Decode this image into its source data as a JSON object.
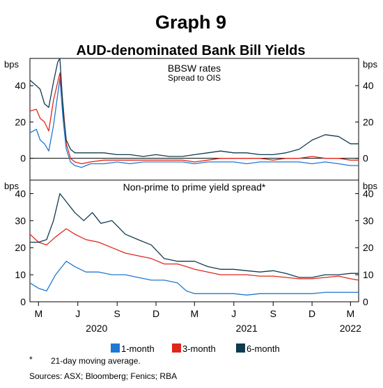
{
  "graph_label": "Graph 9",
  "title": "AUD-denominated Bank Bill Yields",
  "colors": {
    "1-month": "#1f78d1",
    "3-month": "#e0261c",
    "6-month": "#0d3b4f"
  },
  "x_tick_labels": [
    "M",
    "J",
    "S",
    "D",
    "M",
    "J",
    "S",
    "D",
    "M"
  ],
  "year_labels": [
    "2020",
    "2021",
    "2022"
  ],
  "footnote_symbol": "*",
  "footnote_text": "21-day moving average.",
  "sources": "Sources: ASX; Bloomberg; Fenics; RBA",
  "chart_data": [
    {
      "type": "line",
      "title": "BBSW rates",
      "subtitle": "Spread to OIS",
      "y_unit": "bps",
      "ylim": [
        -12,
        55
      ],
      "yticks": [
        0,
        20,
        40
      ],
      "x_range": [
        "2020-02-10",
        "2022-03-20"
      ],
      "x_ticks": [
        "2020-03-01",
        "2020-06-01",
        "2020-09-01",
        "2020-12-01",
        "2021-03-01",
        "2021-06-01",
        "2021-09-01",
        "2021-12-01",
        "2022-03-01"
      ],
      "series": [
        {
          "name": "1-month",
          "x": [
            "2020-02-10",
            "2020-02-25",
            "2020-03-05",
            "2020-03-15",
            "2020-03-25",
            "2020-04-05",
            "2020-04-20",
            "2020-04-28",
            "2020-05-05",
            "2020-05-15",
            "2020-05-25",
            "2020-06-10",
            "2020-07-01",
            "2020-08-01",
            "2020-09-01",
            "2020-10-01",
            "2020-11-01",
            "2020-12-01",
            "2021-01-01",
            "2021-02-01",
            "2021-03-01",
            "2021-04-01",
            "2021-05-01",
            "2021-06-01",
            "2021-07-01",
            "2021-08-01",
            "2021-09-01",
            "2021-10-01",
            "2021-11-01",
            "2021-12-01",
            "2022-01-01",
            "2022-02-01",
            "2022-03-01",
            "2022-03-20"
          ],
          "y": [
            14,
            16,
            10,
            8,
            4,
            18,
            44,
            20,
            5,
            -2,
            -4,
            -5,
            -3,
            -3,
            -2,
            -3,
            -2,
            -2,
            -2,
            -2,
            -3,
            -2,
            -2,
            -2,
            -3,
            -2,
            -2,
            -2,
            -2,
            -3,
            -2,
            -3,
            -4,
            -4
          ]
        },
        {
          "name": "3-month",
          "x": [
            "2020-02-10",
            "2020-02-25",
            "2020-03-05",
            "2020-03-15",
            "2020-03-25",
            "2020-04-05",
            "2020-04-20",
            "2020-04-28",
            "2020-05-05",
            "2020-05-15",
            "2020-05-25",
            "2020-06-10",
            "2020-07-01",
            "2020-08-01",
            "2020-09-01",
            "2020-10-01",
            "2020-11-01",
            "2020-12-01",
            "2021-01-01",
            "2021-02-01",
            "2021-03-01",
            "2021-04-01",
            "2021-05-01",
            "2021-06-01",
            "2021-07-01",
            "2021-08-01",
            "2021-09-01",
            "2021-10-01",
            "2021-11-01",
            "2021-12-01",
            "2022-01-01",
            "2022-02-01",
            "2022-03-01",
            "2022-03-20"
          ],
          "y": [
            26,
            27,
            22,
            20,
            15,
            32,
            47,
            28,
            8,
            0,
            -2,
            -3,
            -2,
            -1,
            -1,
            -1,
            -1,
            -1,
            -1,
            -1,
            -2,
            -1,
            0,
            0,
            0,
            0,
            -1,
            0,
            0,
            1,
            0,
            0,
            -1,
            -1
          ]
        },
        {
          "name": "6-month",
          "x": [
            "2020-02-10",
            "2020-02-25",
            "2020-03-05",
            "2020-03-15",
            "2020-03-25",
            "2020-04-05",
            "2020-04-15",
            "2020-04-20",
            "2020-04-28",
            "2020-05-05",
            "2020-05-15",
            "2020-05-25",
            "2020-06-10",
            "2020-07-01",
            "2020-08-01",
            "2020-09-01",
            "2020-10-01",
            "2020-11-01",
            "2020-12-01",
            "2021-01-01",
            "2021-02-01",
            "2021-03-01",
            "2021-04-01",
            "2021-05-01",
            "2021-06-01",
            "2021-07-01",
            "2021-08-01",
            "2021-09-01",
            "2021-10-01",
            "2021-11-01",
            "2021-12-01",
            "2022-01-01",
            "2022-02-01",
            "2022-03-01",
            "2022-03-20"
          ],
          "y": [
            43,
            40,
            38,
            30,
            28,
            42,
            53,
            55,
            25,
            10,
            5,
            3,
            3,
            3,
            3,
            2,
            2,
            1,
            2,
            1,
            1,
            2,
            3,
            4,
            3,
            3,
            2,
            2,
            3,
            5,
            10,
            13,
            12,
            8,
            8
          ]
        }
      ]
    },
    {
      "type": "line",
      "title": "Non-prime to prime yield spread*",
      "y_unit": "bps",
      "ylim": [
        0,
        45
      ],
      "yticks": [
        0,
        10,
        20,
        30,
        40
      ],
      "x_range": [
        "2020-02-10",
        "2022-03-20"
      ],
      "x_ticks": [
        "2020-03-01",
        "2020-06-01",
        "2020-09-01",
        "2020-12-01",
        "2021-03-01",
        "2021-06-01",
        "2021-09-01",
        "2021-12-01",
        "2022-03-01"
      ],
      "series": [
        {
          "name": "1-month",
          "x": [
            "2020-02-10",
            "2020-03-01",
            "2020-03-20",
            "2020-04-10",
            "2020-05-05",
            "2020-05-25",
            "2020-06-20",
            "2020-07-20",
            "2020-08-20",
            "2020-09-20",
            "2020-10-20",
            "2020-11-20",
            "2020-12-20",
            "2021-01-20",
            "2021-02-10",
            "2021-03-01",
            "2021-04-01",
            "2021-05-01",
            "2021-06-01",
            "2021-07-01",
            "2021-08-01",
            "2021-09-01",
            "2021-10-01",
            "2021-11-01",
            "2021-12-01",
            "2022-01-01",
            "2022-02-01",
            "2022-03-01",
            "2022-03-20"
          ],
          "y": [
            7,
            5,
            4,
            10,
            15,
            13,
            11,
            11,
            10,
            10,
            9,
            8,
            8,
            7,
            4,
            3,
            3,
            3,
            3,
            2.5,
            3,
            3,
            3,
            3,
            3,
            3.5,
            3.5,
            3.5,
            3.5
          ]
        },
        {
          "name": "3-month",
          "x": [
            "2020-02-10",
            "2020-03-01",
            "2020-03-20",
            "2020-04-10",
            "2020-05-05",
            "2020-05-25",
            "2020-06-20",
            "2020-07-20",
            "2020-08-20",
            "2020-09-20",
            "2020-10-20",
            "2020-11-20",
            "2020-12-20",
            "2021-01-20",
            "2021-02-10",
            "2021-03-01",
            "2021-04-01",
            "2021-05-01",
            "2021-06-01",
            "2021-07-01",
            "2021-08-01",
            "2021-09-01",
            "2021-10-01",
            "2021-11-01",
            "2021-12-01",
            "2022-01-01",
            "2022-02-01",
            "2022-03-01",
            "2022-03-20"
          ],
          "y": [
            25,
            22,
            21,
            24,
            27,
            25,
            23,
            22,
            20,
            18,
            17,
            16,
            14,
            14,
            13,
            12,
            11,
            10,
            10,
            10,
            9.5,
            9.5,
            9,
            8.5,
            8.5,
            9,
            9.5,
            8.5,
            8
          ]
        },
        {
          "name": "6-month",
          "x": [
            "2020-02-10",
            "2020-03-01",
            "2020-03-20",
            "2020-04-05",
            "2020-04-20",
            "2020-05-05",
            "2020-05-25",
            "2020-06-15",
            "2020-07-05",
            "2020-07-25",
            "2020-08-20",
            "2020-09-20",
            "2020-10-20",
            "2020-11-20",
            "2020-12-20",
            "2021-01-20",
            "2021-02-10",
            "2021-03-01",
            "2021-04-01",
            "2021-05-01",
            "2021-06-01",
            "2021-07-01",
            "2021-08-01",
            "2021-09-01",
            "2021-10-01",
            "2021-11-01",
            "2021-12-01",
            "2022-01-01",
            "2022-02-01",
            "2022-03-01",
            "2022-03-20"
          ],
          "y": [
            22,
            22,
            23,
            30,
            40,
            37,
            33,
            30,
            33,
            29,
            30,
            25,
            23,
            21,
            16,
            15,
            15,
            15,
            13,
            12,
            12,
            11.5,
            11,
            11.5,
            10.5,
            9,
            9,
            10,
            10,
            10.5,
            10.5
          ]
        }
      ]
    }
  ]
}
